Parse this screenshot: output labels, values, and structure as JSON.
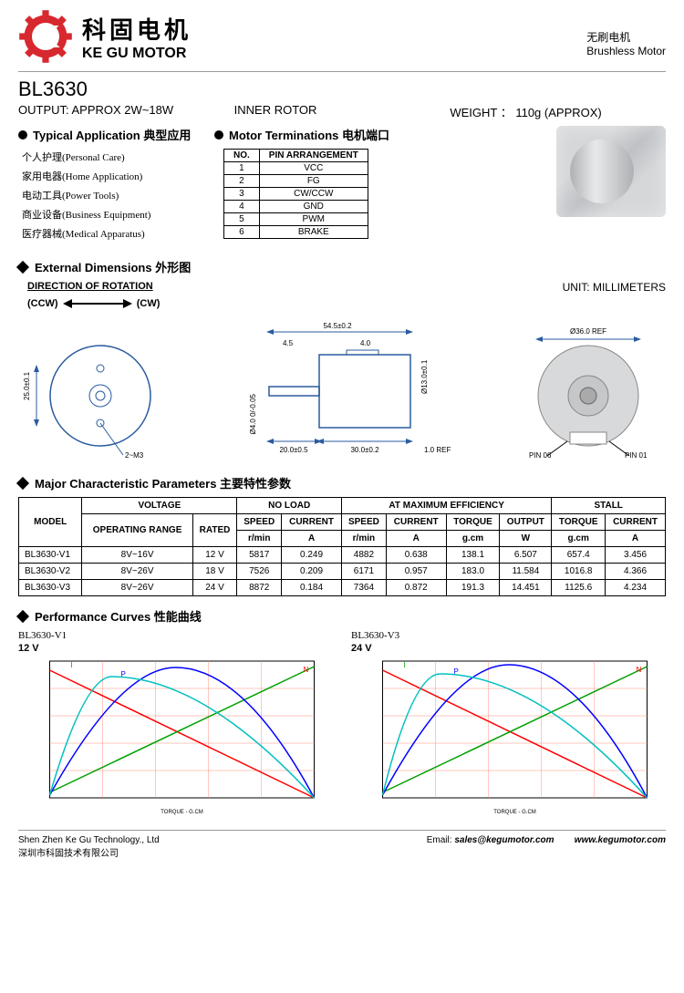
{
  "brand": {
    "cn": "科固电机",
    "en": "KE GU MOTOR",
    "sub_cn": "无刷电机",
    "sub_en": "Brushless Motor"
  },
  "model": "BL3630",
  "output_spec": "OUTPUT: APPROX  2W~18W",
  "inner_rotor": "INNER    ROTOR",
  "weight": "WEIGHT ： 110g  (APPROX)",
  "sections": {
    "app_title": "Typical Application  典型应用",
    "term_title": "Motor Terminations  电机端口",
    "dims_title": "External  Dimensions  外形图",
    "params_title": "Major  Characteristic Parameters  主要特性参数",
    "curves_title": "Performance Curves  性能曲线",
    "unit": "UNIT: MILLIMETERS",
    "dir_label": "DIRECTION  OF  ROTATION",
    "ccw": "(CCW)",
    "cw": "(CW)"
  },
  "applications": [
    "个人护理(Personal Care)",
    "家用电器(Home Application)",
    "电动工具(Power Tools)",
    "商业设备(Business Equipment)",
    "医疗器械(Medical Apparatus)"
  ],
  "pins": {
    "headers": [
      "NO.",
      "PIN  ARRANGEMENT"
    ],
    "rows": [
      [
        "1",
        "VCC"
      ],
      [
        "2",
        "FG"
      ],
      [
        "3",
        "CW/CCW"
      ],
      [
        "4",
        "GND"
      ],
      [
        "5",
        "PWM"
      ],
      [
        "6",
        "BRAKE"
      ]
    ]
  },
  "dims_labels": {
    "front_diam": "Ø36.0 REF",
    "length": "54.5±0.2",
    "shaft_len": "20.0±0.5",
    "body_len": "30.0±0.2",
    "shaft_d": "Ø4.0 0/-0.05",
    "motor_d": "Ø13.0±0.1",
    "mount": "2~M3",
    "mount_pitch": "25.0±0.1",
    "back_d": "Ø36.0 REF",
    "pin06": "PIN 06",
    "pin01": "PIN 01",
    "d45": "4.5",
    "d40": "4.0",
    "ref10": "1.0 REF"
  },
  "char_table": {
    "header_model": "MODEL",
    "header_voltage": "VOLTAGE",
    "header_noload": "NO   LOAD",
    "header_maxeff": "AT  MAXIMUM  EFFICIENCY",
    "header_stall": "STALL",
    "sub_op": "OPERATING RANGE",
    "sub_rated": "RATED",
    "sub_speed": "SPEED",
    "sub_current": "CURRENT",
    "sub_torque": "TORQUE",
    "sub_output": "OUTPUT",
    "unit_rmin": "r/min",
    "unit_a": "A",
    "unit_gcm": "g.cm",
    "unit_w": "W",
    "rows": [
      [
        "BL3630-V1",
        "8V~16V",
        "12 V",
        "5817",
        "0.249",
        "4882",
        "0.638",
        "138.1",
        "6.507",
        "657.4",
        "3.456"
      ],
      [
        "BL3630-V2",
        "8V~26V",
        "18 V",
        "7526",
        "0.209",
        "6171",
        "0.957",
        "183.0",
        "11.584",
        "1016.8",
        "4.366"
      ],
      [
        "BL3630-V3",
        "8V~26V",
        "24 V",
        "8872",
        "0.184",
        "7364",
        "0.872",
        "191.3",
        "14.451",
        "1125.6",
        "4.234"
      ]
    ]
  },
  "curves": {
    "left_title": "BL3630-V1",
    "left_v": "12 V",
    "right_title": "BL3630-V3",
    "right_v": "24 V",
    "xlabel": "TORQUE - G.CM",
    "colors": {
      "grid": "#ff9080",
      "I": "#00a000",
      "P": "#0000ff",
      "N": "#ff0000",
      "eff": "#00c0c0"
    }
  },
  "footer": {
    "company_en": "Shen Zhen Ke Gu Technology., Ltd",
    "company_cn": "深圳市科固技术有限公司",
    "email_label": "Email:",
    "email": "sales@kegumotor.com",
    "web": "www.kegumotor.com"
  }
}
